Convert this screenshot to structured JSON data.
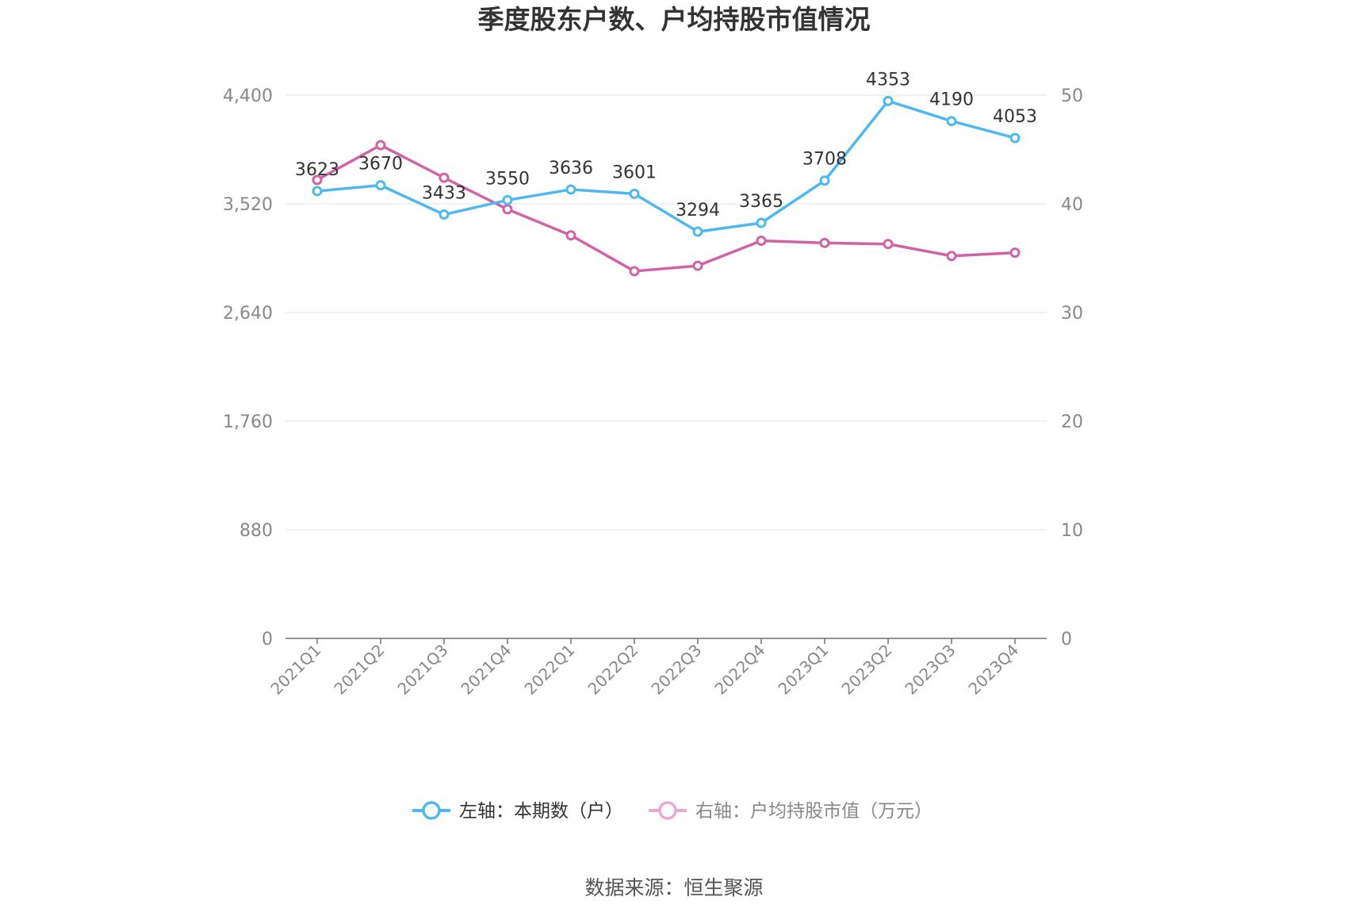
{
  "chart_data": {
    "type": "line",
    "title": "季度股东户数、户均持股市值情况",
    "categories": [
      "2021Q1",
      "2021Q2",
      "2021Q3",
      "2021Q4",
      "2022Q1",
      "2022Q2",
      "2022Q3",
      "2022Q4",
      "2023Q1",
      "2023Q2",
      "2023Q3",
      "2023Q4"
    ],
    "left_axis": {
      "min": 0,
      "max": 4400,
      "ticks": [
        0,
        880,
        1760,
        2640,
        3520,
        4400
      ],
      "tick_labels": [
        "0",
        "880",
        "1,760",
        "2,640",
        "3,520",
        "4,400"
      ]
    },
    "right_axis": {
      "min": 0,
      "max": 50,
      "ticks": [
        0,
        10,
        20,
        30,
        40,
        50
      ],
      "tick_labels": [
        "0",
        "10",
        "20",
        "30",
        "40",
        "50"
      ]
    },
    "grid": true,
    "legend_position": "bottom",
    "series": [
      {
        "name": "左轴：本期数（户）",
        "axis": "left",
        "color": "#4fb9ef",
        "values": [
          3623,
          3670,
          3433,
          3550,
          3636,
          3601,
          3294,
          3365,
          3708,
          4353,
          4190,
          4053
        ],
        "labels": [
          "3623",
          "3670",
          "3433",
          "3550",
          "3636",
          "3601",
          "3294",
          "3365",
          "3708",
          "4353",
          "4190",
          "4053"
        ]
      },
      {
        "name": "右轴：户均持股市值（万元）",
        "axis": "right",
        "color": "#d063a8",
        "legend_color": "#eaa9cf",
        "values": [
          42.2,
          45.4,
          42.4,
          39.5,
          37.1,
          33.8,
          34.3,
          36.6,
          36.4,
          36.3,
          35.2,
          35.5
        ]
      }
    ]
  },
  "source": "数据来源：恒生聚源"
}
